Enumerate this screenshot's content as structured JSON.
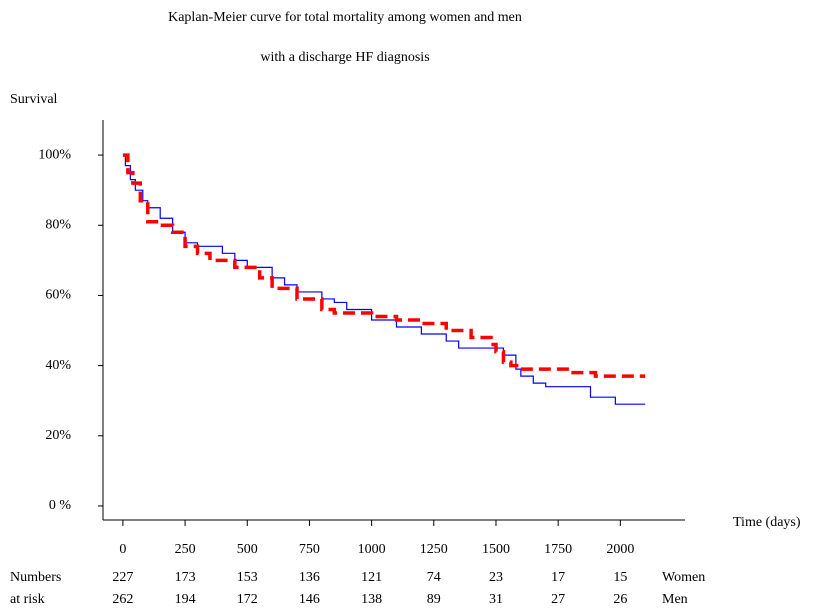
{
  "chart_data": {
    "type": "step",
    "title": [
      "Kaplan-Meier curve for total mortality among women and men",
      "with a discharge HF diagnosis"
    ],
    "y_label": "Survival",
    "x_label": "Time (days)",
    "xlim": [
      -80,
      2260
    ],
    "ylim": [
      -4,
      110
    ],
    "xticks": [
      0,
      250,
      500,
      750,
      1000,
      1250,
      1500,
      1750,
      2000
    ],
    "yticks": [
      {
        "value": 0,
        "label": "0 %"
      },
      {
        "value": 20,
        "label": "20%"
      },
      {
        "value": 40,
        "label": "40%"
      },
      {
        "value": 60,
        "label": "60%"
      },
      {
        "value": 80,
        "label": "80%"
      },
      {
        "value": 100,
        "label": "100%"
      }
    ],
    "series": [
      {
        "color": "#0000ff",
        "dash": false,
        "x": [
          0,
          10,
          10,
          30,
          30,
          50,
          50,
          80,
          80,
          100,
          100,
          150,
          150,
          200,
          200,
          250,
          250,
          300,
          300,
          400,
          400,
          450,
          450,
          500,
          500,
          600,
          600,
          650,
          650,
          700,
          700,
          800,
          800,
          850,
          850,
          900,
          900,
          1000,
          1000,
          1100,
          1100,
          1200,
          1200,
          1300,
          1300,
          1350,
          1350,
          1530,
          1530,
          1580,
          1580,
          1600,
          1600,
          1650,
          1650,
          1700,
          1700,
          1880,
          1880,
          1980,
          1980,
          2100
        ],
        "values": [
          100,
          100,
          97,
          97,
          93,
          93,
          90,
          90,
          87,
          87,
          85,
          85,
          82,
          82,
          78,
          78,
          75,
          75,
          74,
          74,
          72,
          72,
          70,
          70,
          68,
          68,
          65,
          65,
          63,
          63,
          61,
          61,
          59,
          59,
          58,
          58,
          56,
          56,
          53,
          53,
          51,
          51,
          49,
          49,
          47,
          47,
          45,
          45,
          43,
          43,
          39,
          39,
          37,
          37,
          35,
          35,
          34,
          34,
          31,
          31,
          29,
          29
        ]
      },
      {
        "color": "#ff0000",
        "dash": true,
        "x": [
          0,
          20,
          20,
          40,
          40,
          70,
          70,
          100,
          100,
          150,
          150,
          200,
          200,
          250,
          250,
          300,
          300,
          350,
          350,
          450,
          450,
          550,
          550,
          600,
          600,
          700,
          700,
          800,
          800,
          850,
          850,
          1000,
          1000,
          1100,
          1100,
          1200,
          1200,
          1300,
          1300,
          1400,
          1400,
          1480,
          1480,
          1500,
          1500,
          1530,
          1530,
          1560,
          1560,
          1600,
          1600,
          1800,
          1800,
          1900,
          1900,
          2100
        ],
        "values": [
          100,
          100,
          95,
          95,
          92,
          92,
          87,
          87,
          81,
          81,
          80,
          80,
          78,
          78,
          74,
          74,
          72,
          72,
          70,
          70,
          68,
          68,
          65,
          65,
          62,
          62,
          59,
          59,
          56,
          56,
          55,
          55,
          54,
          54,
          53,
          53,
          52,
          52,
          50,
          50,
          48,
          48,
          46,
          46,
          44,
          44,
          41,
          41,
          40,
          40,
          39,
          39,
          38,
          38,
          37,
          37
        ]
      }
    ],
    "risk_table": {
      "label": [
        "Numbers",
        "at risk"
      ],
      "rows": [
        {
          "name": "Women",
          "values": [
            227,
            173,
            153,
            136,
            121,
            74,
            23,
            17,
            15
          ]
        },
        {
          "name": "Men",
          "values": [
            262,
            194,
            172,
            146,
            138,
            89,
            31,
            27,
            26
          ]
        }
      ]
    }
  }
}
